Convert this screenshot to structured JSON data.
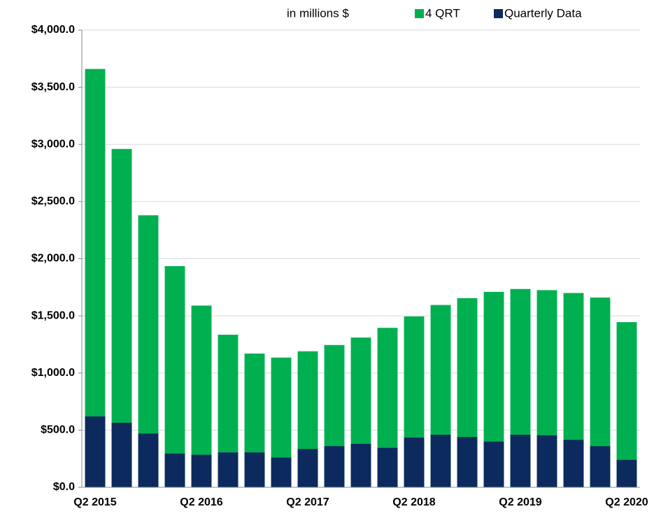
{
  "chart_data": {
    "type": "bar",
    "barmode": "overlay",
    "annotation": "in millions $",
    "categories": [
      "Q2 2015",
      null,
      null,
      null,
      "Q2 2016",
      null,
      null,
      null,
      "Q2 2017",
      null,
      null,
      null,
      "Q2 2018",
      null,
      null,
      null,
      "Q2 2019",
      null,
      null,
      null,
      "Q2 2020"
    ],
    "series": [
      {
        "name": "4 QRT",
        "color": "#00b050",
        "values": [
          3660,
          2960,
          2380,
          1935,
          1590,
          1335,
          1170,
          1135,
          1190,
          1245,
          1310,
          1395,
          1495,
          1595,
          1655,
          1710,
          1735,
          1725,
          1700,
          1660,
          1445
        ]
      },
      {
        "name": "Quarterly Data",
        "color": "#0c2a5e",
        "values": [
          620,
          565,
          470,
          295,
          285,
          305,
          305,
          260,
          335,
          360,
          380,
          345,
          435,
          460,
          440,
          400,
          460,
          455,
          415,
          360,
          240
        ]
      }
    ],
    "ylim": [
      0,
      4000
    ],
    "yticks": [
      {
        "value": 0,
        "label": "$0.0"
      },
      {
        "value": 500,
        "label": "$500.0"
      },
      {
        "value": 1000,
        "label": "$1,000.0"
      },
      {
        "value": 1500,
        "label": "$1,500.0"
      },
      {
        "value": 2000,
        "label": "$2,000.0"
      },
      {
        "value": 2500,
        "label": "$2,500.0"
      },
      {
        "value": 3000,
        "label": "$3,000.0"
      },
      {
        "value": 3500,
        "label": "$3,500.0"
      },
      {
        "value": 4000,
        "label": "$4,000.0"
      }
    ],
    "grid": true
  }
}
